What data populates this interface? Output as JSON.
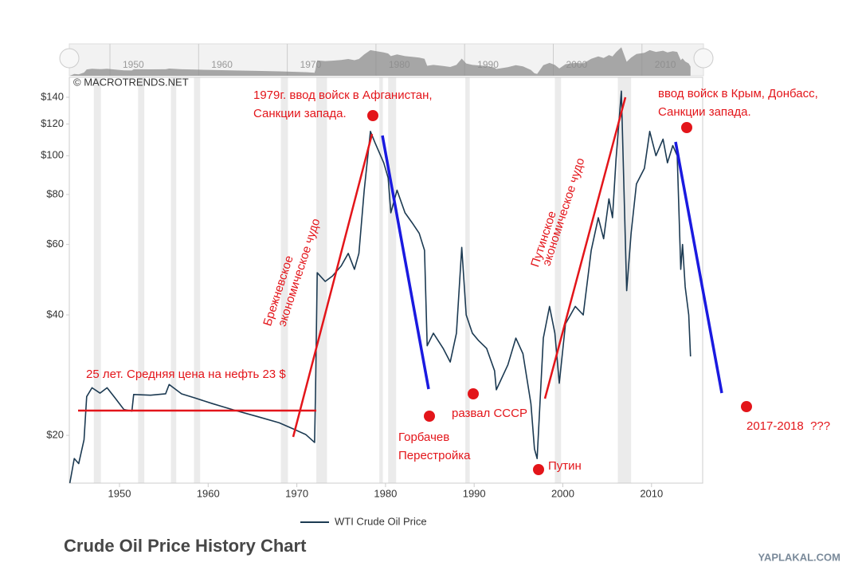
{
  "chart_data": {
    "type": "line",
    "title": "Crude Oil Price History Chart",
    "source": "© MACROTRENDS.NET",
    "watermark": "YAPLAKAL.COM",
    "x": [
      1944.4,
      1944.9,
      1945.4,
      1946.0,
      1946.3,
      1946.9,
      1947.8,
      1948.6,
      1949.5,
      1950.5,
      1951.4,
      1951.6,
      1953.5,
      1955.2,
      1955.6,
      1957.0,
      1958.5,
      1960.5,
      1963.0,
      1965.5,
      1968.0,
      1969.5,
      1971.0,
      1972.0,
      1972.1,
      1972.3,
      1973.2,
      1974.0,
      1975.0,
      1975.8,
      1976.5,
      1977.0,
      1977.6,
      1978.3,
      1978.8,
      1979.8,
      1980.3,
      1980.6,
      1981.3,
      1982.2,
      1983.0,
      1983.8,
      1984.4,
      1984.7,
      1985.4,
      1986.5,
      1987.3,
      1988.0,
      1988.6,
      1989.1,
      1989.8,
      1990.5,
      1991.4,
      1992.3,
      1992.5,
      1993.8,
      1994.7,
      1995.5,
      1996.4,
      1996.8,
      1997.1,
      1997.8,
      1998.5,
      1999.1,
      1999.6,
      2000.3,
      2001.4,
      2002.3,
      2003.2,
      2004.0,
      2004.6,
      2005.2,
      2005.6,
      2006.0,
      2006.6,
      2007.2,
      2007.7,
      2008.3,
      2009.2,
      2009.8,
      2010.5,
      2011.3,
      2011.8,
      2012.4,
      2012.9,
      2013.3,
      2013.5,
      2013.8,
      2014.2,
      2014.4
    ],
    "series": [
      {
        "name": "WTI Crude Oil Price",
        "color": "#1c3a52",
        "values": [
          15.2,
          17.5,
          17.0,
          19.5,
          25.0,
          26.3,
          25.5,
          26.3,
          24.8,
          23.2,
          23.0,
          25.3,
          25.2,
          25.4,
          26.8,
          25.4,
          24.8,
          24.0,
          23.1,
          22.3,
          21.5,
          20.8,
          20.1,
          19.2,
          25.0,
          51.0,
          48.5,
          50.0,
          53.0,
          57.0,
          52.0,
          57.0,
          82.0,
          115.0,
          108.0,
          96.0,
          88.0,
          72.0,
          82.0,
          72.0,
          68.0,
          64.0,
          58.0,
          33.5,
          36.0,
          33.0,
          30.5,
          36.0,
          59.0,
          40.0,
          36.0,
          34.5,
          33.0,
          29.0,
          26.0,
          30.0,
          35.0,
          32.0,
          24.0,
          18.5,
          17.5,
          35.0,
          42.0,
          36.0,
          27.0,
          38.0,
          42.0,
          40.0,
          58.0,
          70.0,
          62.0,
          78.0,
          70.0,
          98.0,
          145.0,
          46.0,
          64.0,
          85.0,
          93.0,
          115.0,
          100.0,
          110.0,
          96.0,
          106.0,
          100.0,
          52.0,
          60.0,
          47.0,
          40.0,
          31.5
        ]
      }
    ],
    "xlim": [
      1944.34,
      2015.77
    ],
    "xticks": [
      1950,
      1960,
      1970,
      1980,
      1990,
      2000,
      2010
    ],
    "ylim": [
      15.19,
      157.0
    ],
    "yticks": [
      {
        "value": 20,
        "label": "$20"
      },
      {
        "value": 40,
        "label": "$40"
      },
      {
        "value": 60,
        "label": "$60"
      },
      {
        "value": 80,
        "label": "$80"
      },
      {
        "value": 100,
        "label": "$100"
      },
      {
        "value": 120,
        "label": "$120"
      },
      {
        "value": 140,
        "label": "$140"
      }
    ],
    "log_y": true,
    "grid": false,
    "shaded_periods": [
      [
        1947.1,
        1947.9
      ],
      [
        1952.1,
        1952.8
      ],
      [
        1955.8,
        1956.4
      ],
      [
        1958.4,
        1959.1
      ],
      [
        1968.2,
        1969.0
      ],
      [
        1972.2,
        1973.4
      ],
      [
        1979.3,
        1979.7
      ],
      [
        1980.3,
        1981.2
      ],
      [
        1989.0,
        1989.5
      ],
      [
        1999.1,
        1999.8
      ],
      [
        2006.2,
        2007.7
      ]
    ],
    "shade_color": "#ebebeb",
    "annotation_color": "#e3151a",
    "annotations": [
      {
        "lines": [
          "1979г. ввод войск в Афганистан,",
          "Санкции запада."
        ]
      },
      {
        "lines": [
          "ввод войск в Крым, Донбасс,",
          "Санкции запада."
        ]
      },
      {
        "lines": [
          "Брежневское",
          "экономическое чудо"
        ]
      },
      {
        "lines": [
          "Путинское",
          "экономическое чудо"
        ]
      },
      {
        "lines": [
          "25 лет. Средняя цена на нефть 23 $"
        ]
      },
      {
        "lines": [
          "Горбачев",
          "Перестройка"
        ]
      },
      {
        "lines": [
          "развал СССР"
        ]
      },
      {
        "lines": [
          "Путин"
        ]
      },
      {
        "lines": [
          "2017-2018  ???"
        ]
      }
    ]
  }
}
